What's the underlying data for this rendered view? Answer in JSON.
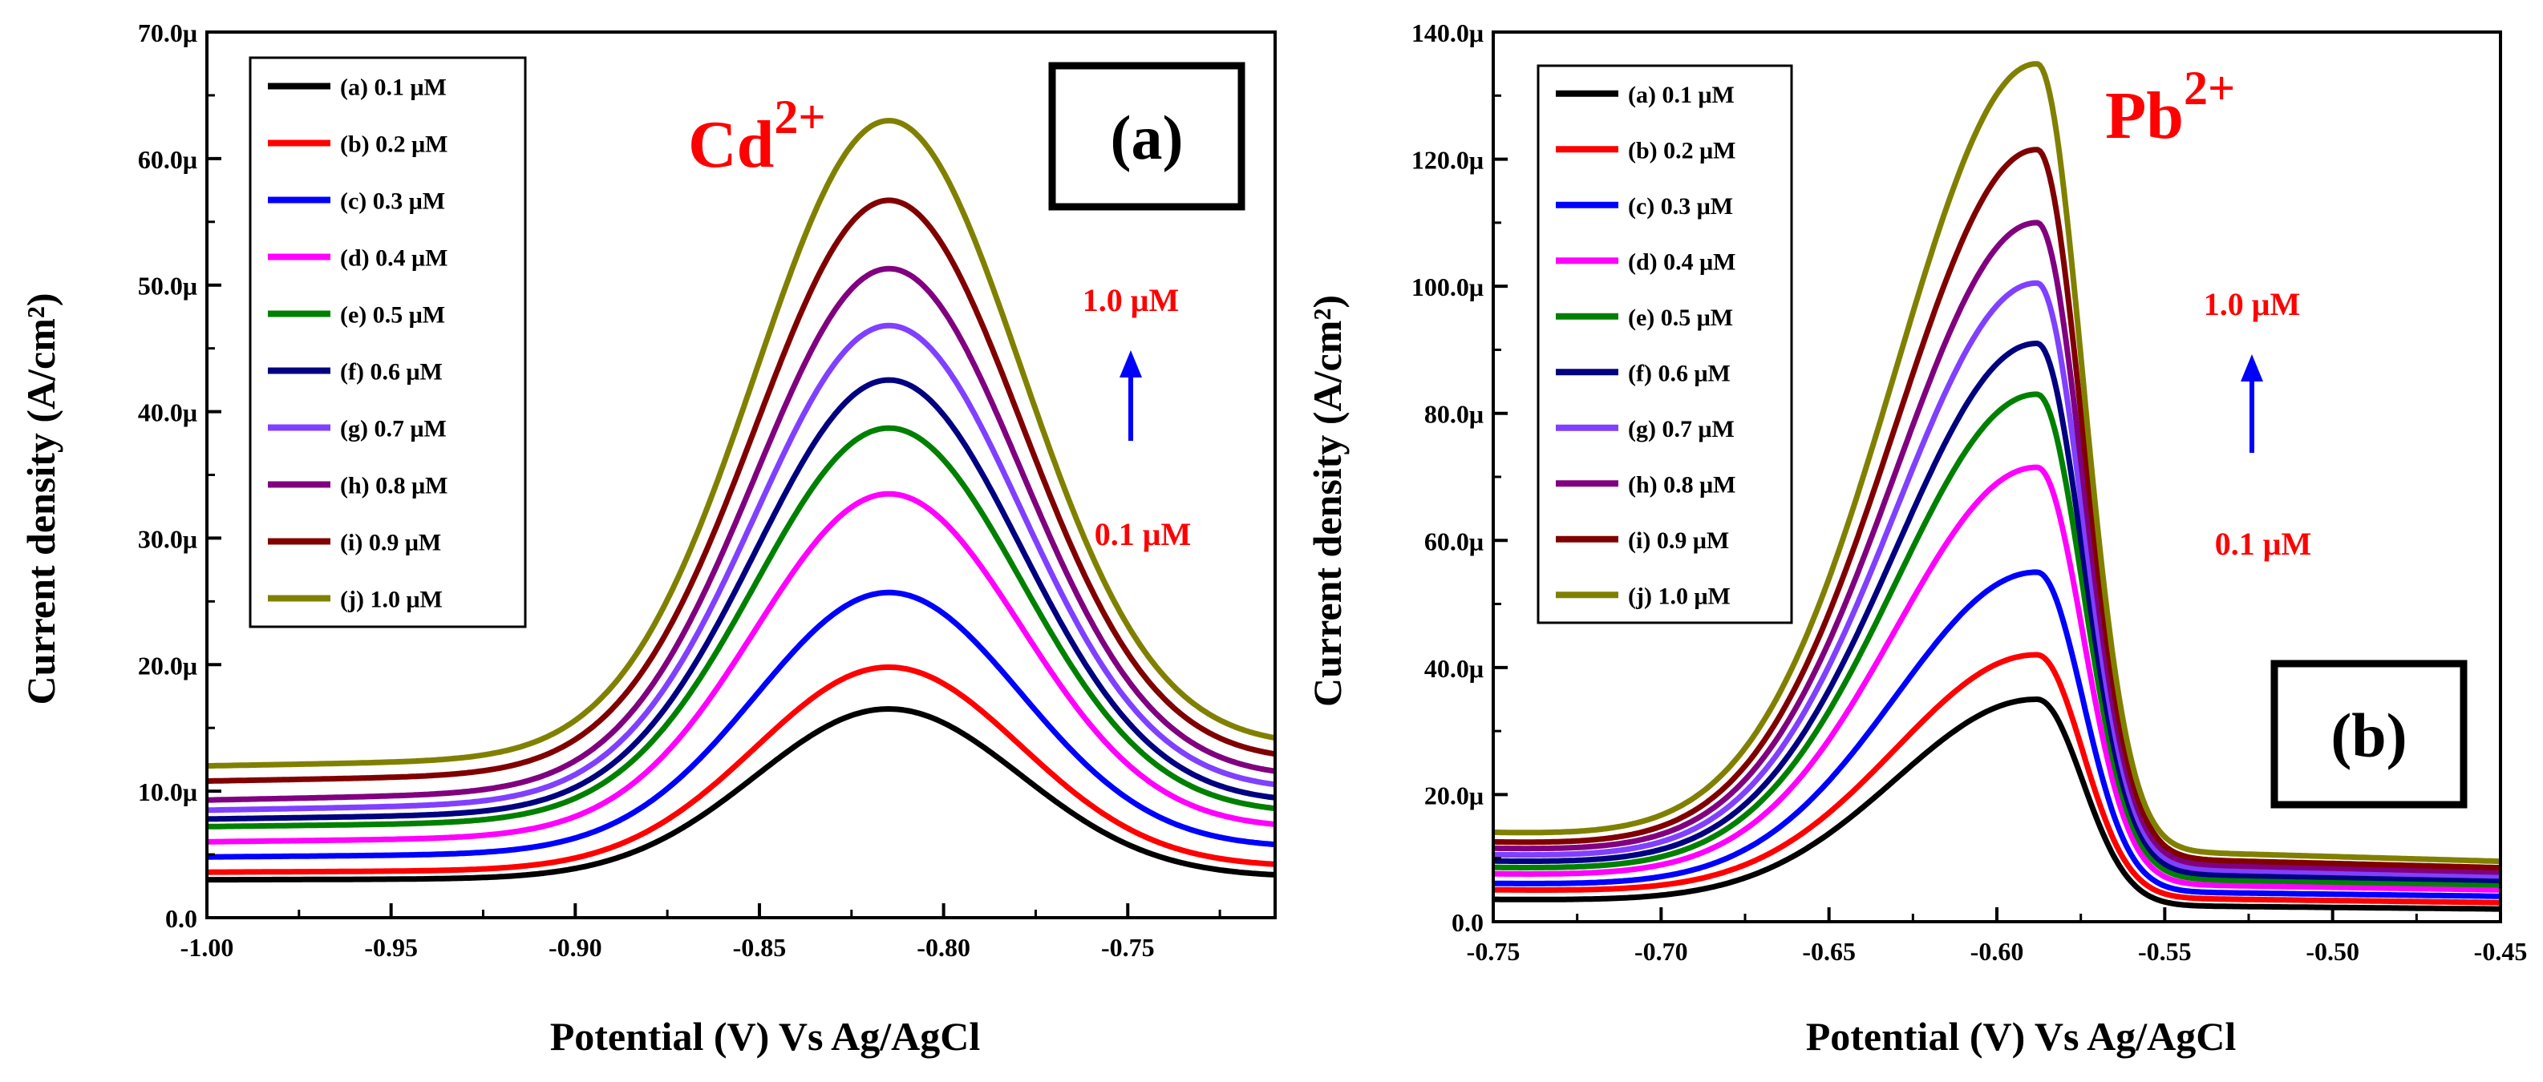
{
  "chart_data": [
    {
      "type": "line",
      "panel_label": "(a)",
      "title": "Cd2+",
      "title_base": "Cd",
      "title_sup": "2+",
      "xlabel": "Potential (V) Vs Ag/AgCl",
      "ylabel": "Current density (A/cm²)",
      "xlim": [
        -1.0,
        -0.71
      ],
      "ylim": [
        0,
        70
      ],
      "xticks": [
        -1.0,
        -0.95,
        -0.9,
        -0.85,
        -0.8,
        -0.75
      ],
      "xtick_labels": [
        "-1.00",
        "-0.95",
        "-0.90",
        "-0.85",
        "-0.80",
        "-0.75"
      ],
      "yticks": [
        0,
        10,
        20,
        30,
        40,
        50,
        60,
        70
      ],
      "ytick_labels": [
        "0.0",
        "10.0μ",
        "20.0μ",
        "30.0μ",
        "40.0μ",
        "50.0μ",
        "60.0μ",
        "70.0μ"
      ],
      "legend_position": "top-left",
      "arrow_annotation": {
        "top": "1.0 μM",
        "bottom": "0.1 μM"
      },
      "peak_potential": -0.815,
      "series": [
        {
          "name": "(a) 0.1 μM",
          "color": "#000000",
          "baseline_start": 3.0,
          "baseline_end": 3.2,
          "peak": 16.5
        },
        {
          "name": "(b) 0.2 μM",
          "color": "#ff0000",
          "baseline_start": 3.6,
          "baseline_end": 4.0,
          "peak": 19.8
        },
        {
          "name": "(c) 0.3 μM",
          "color": "#0000ff",
          "baseline_start": 4.8,
          "baseline_end": 5.5,
          "peak": 25.7
        },
        {
          "name": "(d) 0.4 μM",
          "color": "#ff00ff",
          "baseline_start": 6.0,
          "baseline_end": 7.0,
          "peak": 33.5
        },
        {
          "name": "(e) 0.5 μM",
          "color": "#008000",
          "baseline_start": 7.2,
          "baseline_end": 8.2,
          "peak": 38.7
        },
        {
          "name": "(f) 0.6 μM",
          "color": "#000080",
          "baseline_start": 7.8,
          "baseline_end": 9.0,
          "peak": 42.5
        },
        {
          "name": "(g) 0.7 μM",
          "color": "#8040ff",
          "baseline_start": 8.5,
          "baseline_end": 10.0,
          "peak": 46.8
        },
        {
          "name": "(h) 0.8 μM",
          "color": "#800080",
          "baseline_start": 9.3,
          "baseline_end": 11.0,
          "peak": 51.3
        },
        {
          "name": "(i) 0.9 μM",
          "color": "#800000",
          "baseline_start": 10.8,
          "baseline_end": 12.3,
          "peak": 56.7
        },
        {
          "name": "(j) 1.0 μM",
          "color": "#808000",
          "baseline_start": 12.0,
          "baseline_end": 13.5,
          "peak": 63.0
        }
      ]
    },
    {
      "type": "line",
      "panel_label": "(b)",
      "title": "Pb2+",
      "title_base": "Pb",
      "title_sup": "2+",
      "xlabel": "Potential (V) Vs Ag/AgCl",
      "ylabel": "Current density (A/cm²)",
      "xlim": [
        -0.75,
        -0.45
      ],
      "ylim": [
        0,
        140
      ],
      "xticks": [
        -0.75,
        -0.7,
        -0.65,
        -0.6,
        -0.55,
        -0.5,
        -0.45
      ],
      "xtick_labels": [
        "-0.75",
        "-0.70",
        "-0.65",
        "-0.60",
        "-0.55",
        "-0.50",
        "-0.45"
      ],
      "yticks": [
        0,
        20,
        40,
        60,
        80,
        100,
        120,
        140
      ],
      "ytick_labels": [
        "0.0",
        "20.0μ",
        "40.0μ",
        "60.0μ",
        "80.0μ",
        "100.0μ",
        "120.0μ",
        "140.0μ"
      ],
      "legend_position": "top-left",
      "arrow_annotation": {
        "top": "1.0 μM",
        "bottom": "0.1 μM"
      },
      "peak_potential": -0.588,
      "series": [
        {
          "name": "(a) 0.1 μM",
          "color": "#000000",
          "baseline_start": 3.5,
          "baseline_end": 2.0,
          "peak": 35.0
        },
        {
          "name": "(b) 0.2 μM",
          "color": "#ff0000",
          "baseline_start": 5.0,
          "baseline_end": 3.0,
          "peak": 42.0
        },
        {
          "name": "(c) 0.3 μM",
          "color": "#0000ff",
          "baseline_start": 6.0,
          "baseline_end": 4.0,
          "peak": 55.0
        },
        {
          "name": "(d) 0.4 μM",
          "color": "#ff00ff",
          "baseline_start": 7.5,
          "baseline_end": 5.0,
          "peak": 71.5
        },
        {
          "name": "(e) 0.5 μM",
          "color": "#008000",
          "baseline_start": 8.5,
          "baseline_end": 5.8,
          "peak": 83.0
        },
        {
          "name": "(f) 0.6 μM",
          "color": "#000080",
          "baseline_start": 9.5,
          "baseline_end": 6.5,
          "peak": 91.0
        },
        {
          "name": "(g) 0.7 μM",
          "color": "#8040ff",
          "baseline_start": 10.5,
          "baseline_end": 7.2,
          "peak": 100.5
        },
        {
          "name": "(h) 0.8 μM",
          "color": "#800080",
          "baseline_start": 11.5,
          "baseline_end": 7.8,
          "peak": 110.0
        },
        {
          "name": "(i) 0.9 μM",
          "color": "#800000",
          "baseline_start": 12.5,
          "baseline_end": 8.5,
          "peak": 121.5
        },
        {
          "name": "(j) 1.0 μM",
          "color": "#808000",
          "baseline_start": 14.0,
          "baseline_end": 9.5,
          "peak": 135.0
        }
      ]
    }
  ]
}
